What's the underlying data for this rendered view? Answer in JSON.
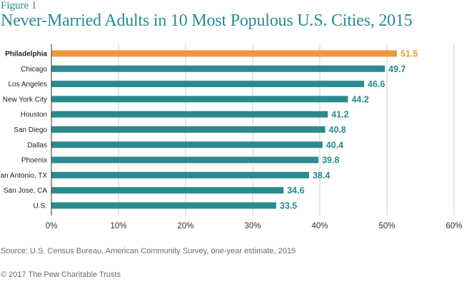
{
  "figure_label": "Figure 1",
  "source": "Source: U.S. Census Bureau, American Community Survey, one-year estimate, 2015",
  "copyright": "© 2017 The Pew Charitable Trusts",
  "colors": {
    "bar": "#2a8a8f",
    "highlight": "#ee9a3a",
    "grid": "#cfcfcf",
    "axis": "#333333"
  },
  "chart_data": {
    "type": "bar",
    "orientation": "horizontal",
    "title": "Never-Married Adults in 10 Most Populous U.S. Cities, 2015",
    "categories": [
      "Philadelphia",
      "Chicago",
      "Los Angeles",
      "New York City",
      "Houston",
      "San Diego",
      "Dallas",
      "Phoenix",
      "San Antonio, TX",
      "San Jose, CA",
      "U.S."
    ],
    "values": [
      51.5,
      49.7,
      46.6,
      44.2,
      41.2,
      40.8,
      40.4,
      39.8,
      38.4,
      34.6,
      33.5
    ],
    "value_labels": [
      "51.5",
      "49.7",
      "46.6",
      "44.2",
      "41.2",
      "40.8",
      "40.4",
      "39.8",
      "38.4",
      "34.6",
      "33.5"
    ],
    "highlight": "Philadelphia",
    "xlim": [
      0,
      60
    ],
    "xticks": [
      0,
      10,
      20,
      30,
      40,
      50,
      60
    ],
    "xtick_labels": [
      "0%",
      "10%",
      "20%",
      "30%",
      "40%",
      "50%",
      "60%"
    ],
    "xlabel": "",
    "ylabel": "",
    "grid": true
  }
}
